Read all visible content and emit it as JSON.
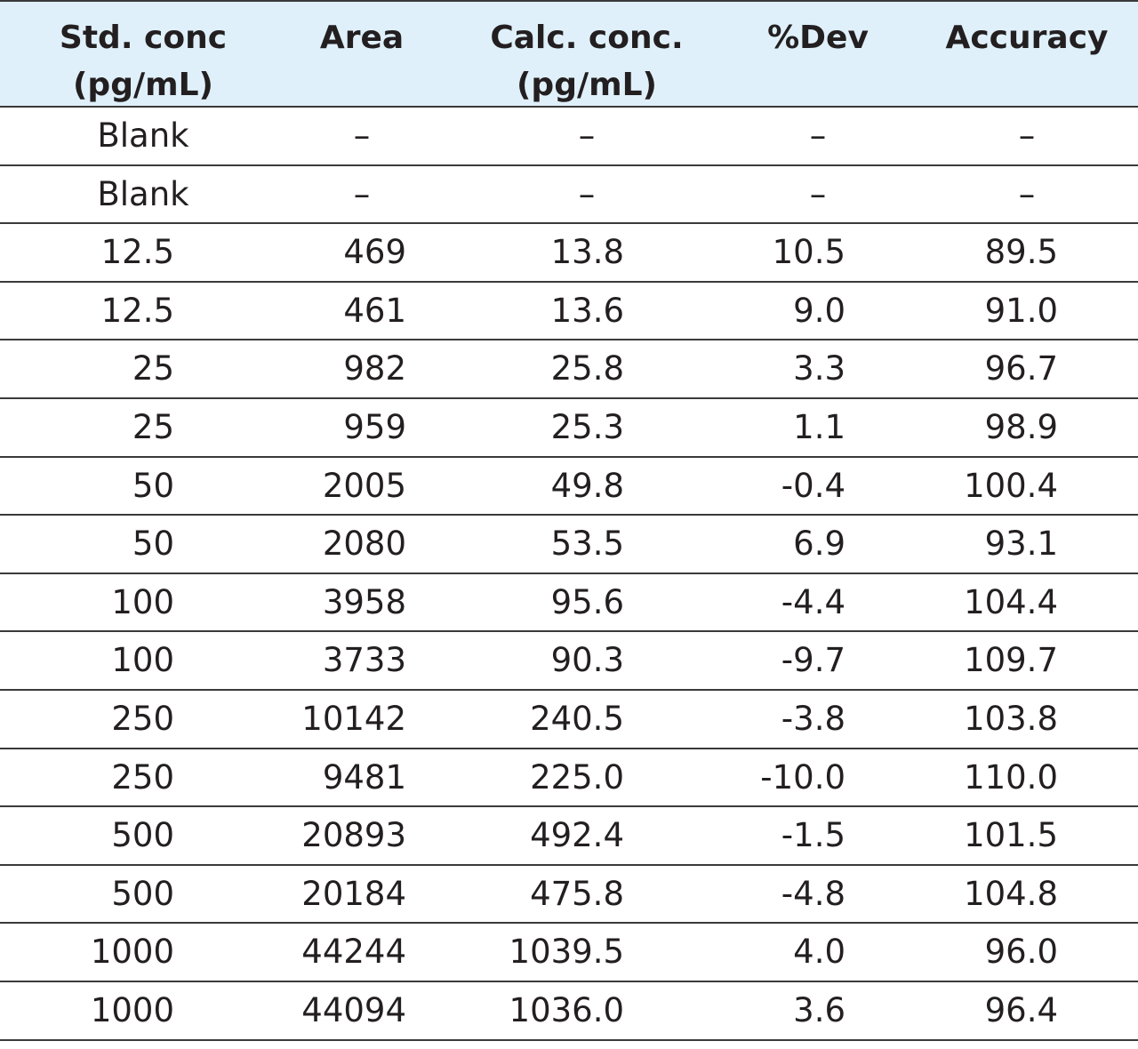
{
  "table": {
    "headers": [
      "Std. conc\n(pg/mL)",
      "Area",
      "Calc. conc.\n(pg/mL)",
      "%Dev",
      "Accuracy"
    ],
    "rows": [
      [
        "Blank",
        "–",
        "–",
        "–",
        "–"
      ],
      [
        "Blank",
        "–",
        "–",
        "–",
        "–"
      ],
      [
        "12.5",
        "469",
        "13.8",
        "10.5",
        "89.5"
      ],
      [
        "12.5",
        "461",
        "13.6",
        "9.0",
        "91.0"
      ],
      [
        "25",
        "982",
        "25.8",
        "3.3",
        "96.7"
      ],
      [
        "25",
        "959",
        "25.3",
        "1.1",
        "98.9"
      ],
      [
        "50",
        "2005",
        "49.8",
        "-0.4",
        "100.4"
      ],
      [
        "50",
        "2080",
        "53.5",
        "6.9",
        "93.1"
      ],
      [
        "100",
        "3958",
        "95.6",
        "-4.4",
        "104.4"
      ],
      [
        "100",
        "3733",
        "90.3",
        "-9.7",
        "109.7"
      ],
      [
        "250",
        "10142",
        "240.5",
        "-3.8",
        "103.8"
      ],
      [
        "250",
        "9481",
        "225.0",
        "-10.0",
        "110.0"
      ],
      [
        "500",
        "20893",
        "492.4",
        "-1.5",
        "101.5"
      ],
      [
        "500",
        "20184",
        "475.8",
        "-4.8",
        "104.8"
      ],
      [
        "1000",
        "44244",
        "1039.5",
        "4.0",
        "96.0"
      ],
      [
        "1000",
        "44094",
        "1036.0",
        "3.6",
        "96.4"
      ]
    ]
  },
  "colors": {
    "header_background": "#dff0fa",
    "rule": "#3a3a3a",
    "text": "#231f20"
  }
}
